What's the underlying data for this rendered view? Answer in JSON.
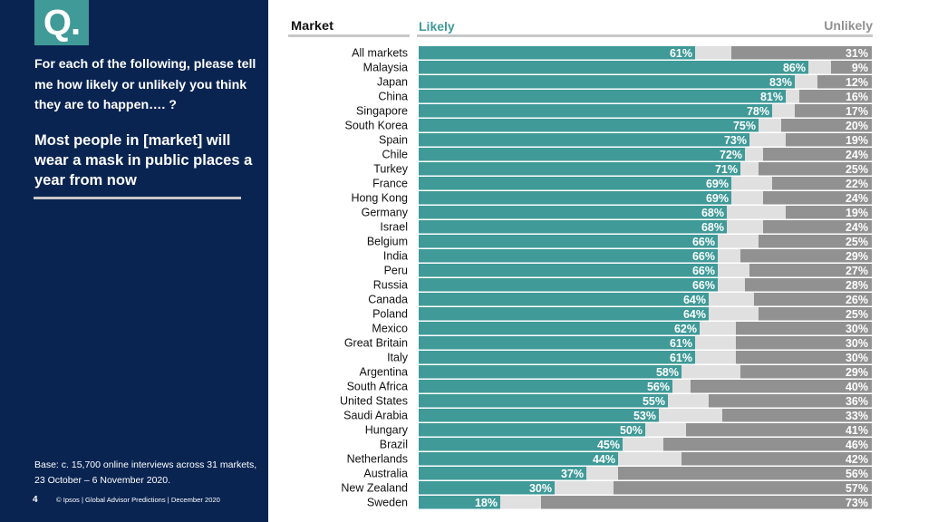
{
  "sidebar": {
    "q_label": "Q.",
    "question": "For each of the following, please tell me how likely or unlikely you think they are to happen…. ?",
    "statement": "Most people in [market] will wear a mask in public places a year from now",
    "base_note": "Base: c. 15,700 online interviews across 31 markets,  23 October – 6 November 2020.",
    "page_number": "4",
    "footer": "© Ipsos | Global Advisor Predictions | December 2020"
  },
  "colors": {
    "panel": "#0a2452",
    "likely": "#3f9a98",
    "neither": "#e0e0e0",
    "unlikely": "#919191",
    "header_rule": "#c8c8c8"
  },
  "chart_data": {
    "type": "bar",
    "orientation": "horizontal-stacked",
    "title": "Most people in [market] will wear a mask in public places a year from now",
    "column_headers": {
      "market": "Market",
      "likely": "Likely",
      "unlikely": "Unlikely"
    },
    "xlim": [
      0,
      100
    ],
    "unit": "%",
    "categories": [
      "All markets",
      "Malaysia",
      "Japan",
      "China",
      "Singapore",
      "South Korea",
      "Spain",
      "Chile",
      "Turkey",
      "France",
      "Hong Kong",
      "Germany",
      "Israel",
      "Belgium",
      "India",
      "Peru",
      "Russia",
      "Canada",
      "Poland",
      "Mexico",
      "Great Britain",
      "Italy",
      "Argentina",
      "South Africa",
      "United States",
      "Saudi Arabia",
      "Hungary",
      "Brazil",
      "Netherlands",
      "Australia",
      "New Zealand",
      "Sweden"
    ],
    "series": [
      {
        "name": "Likely",
        "values": [
          61,
          86,
          83,
          81,
          78,
          75,
          73,
          72,
          71,
          69,
          69,
          68,
          68,
          66,
          66,
          66,
          66,
          64,
          64,
          62,
          61,
          61,
          58,
          56,
          55,
          53,
          50,
          45,
          44,
          37,
          30,
          18
        ]
      },
      {
        "name": "Unlikely",
        "values": [
          31,
          9,
          12,
          16,
          17,
          20,
          19,
          24,
          25,
          22,
          24,
          19,
          24,
          25,
          29,
          27,
          28,
          26,
          25,
          30,
          30,
          30,
          29,
          40,
          36,
          33,
          41,
          46,
          42,
          56,
          57,
          73
        ]
      }
    ],
    "legend": "top (column headers)"
  }
}
